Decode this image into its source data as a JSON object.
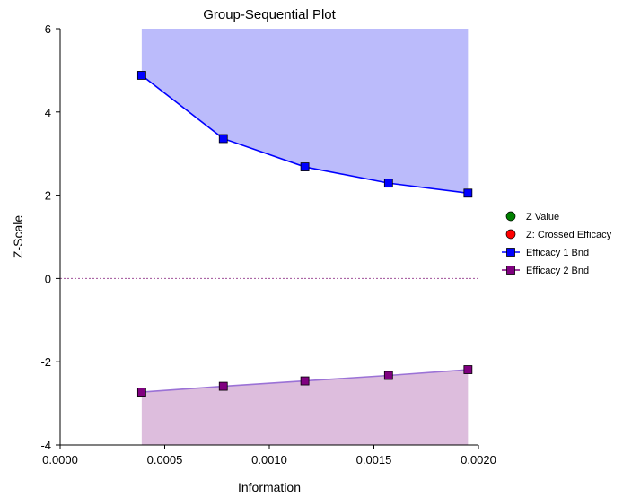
{
  "chart_data": {
    "type": "line",
    "title": "Group-Sequential Plot",
    "xlabel": "Information",
    "ylabel": "Z-Scale",
    "xlim": [
      0.0,
      0.002
    ],
    "ylim": [
      -4,
      6
    ],
    "x_ticks": [
      0.0,
      0.0005,
      0.001,
      0.0015,
      0.002
    ],
    "x_tick_labels": [
      "0.0000",
      "0.0005",
      "0.0010",
      "0.0015",
      "0.0020"
    ],
    "y_ticks": [
      -4,
      -2,
      0,
      2,
      4,
      6
    ],
    "y_tick_labels": [
      "-4",
      "-2",
      "0",
      "2",
      "4",
      "6"
    ],
    "grid": false,
    "reference_line": {
      "y": 0,
      "style": "dotted",
      "color": "#a0509a"
    },
    "x": [
      0.00039,
      0.00078,
      0.00117,
      0.00157,
      0.00195
    ],
    "series": [
      {
        "name": "Efficacy 1 Bnd",
        "values": [
          4.88,
          3.36,
          2.68,
          2.29,
          2.05
        ],
        "color": "#0000ff",
        "marker": "square",
        "fill_to": 6,
        "fill_color": "#bbbbfb"
      },
      {
        "name": "Efficacy 2 Bnd",
        "values": [
          -2.73,
          -2.59,
          -2.46,
          -2.33,
          -2.19
        ],
        "color": "#800080",
        "line_color": "#9b72d6",
        "marker": "square",
        "fill_to": -4,
        "fill_color": "#ddbddd"
      }
    ],
    "legend": {
      "placement": "right",
      "entries": [
        {
          "label": "Z Value",
          "symbol": "circle",
          "color": "#008000"
        },
        {
          "label": "Z: Crossed Efficacy",
          "symbol": "circle",
          "color": "#ff0000"
        },
        {
          "label": "Efficacy 1 Bnd",
          "symbol": "line-square",
          "color": "#0000ff"
        },
        {
          "label": "Efficacy 2 Bnd",
          "symbol": "line-square",
          "color": "#800080"
        }
      ]
    }
  }
}
